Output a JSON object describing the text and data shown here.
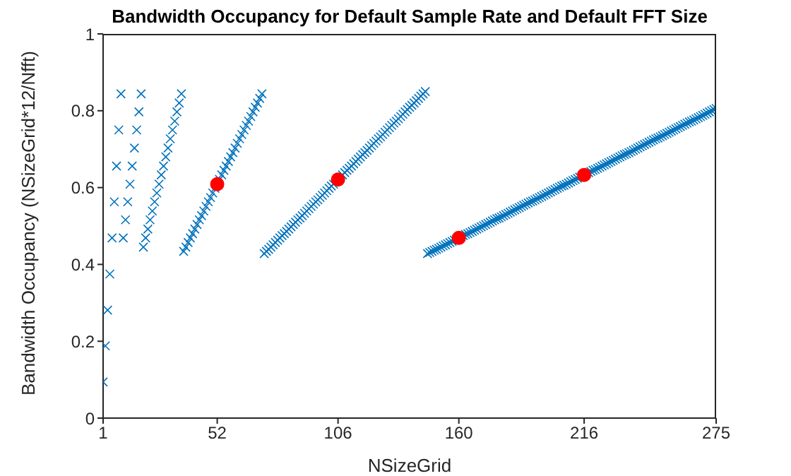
{
  "chart_data": {
    "type": "scatter",
    "title": "Bandwidth Occupancy for Default Sample Rate and Default FFT Size",
    "xlabel": "NSizeGrid",
    "ylabel": "Bandwidth Occupancy (NSizeGrid*12/Nfft)",
    "xlim": [
      1,
      275
    ],
    "xticks": [
      1,
      52,
      106,
      160,
      216,
      275
    ],
    "ylim": [
      0,
      1
    ],
    "yticks": [
      0,
      0.2,
      0.4,
      0.6,
      0.8,
      1
    ],
    "series": [
      {
        "color": "#0072bd",
        "marker": "cross",
        "x": [
          1,
          2,
          3,
          4,
          5,
          6,
          7,
          8,
          9,
          10,
          11,
          12,
          13,
          14,
          15,
          16,
          17,
          18,
          19,
          20,
          21,
          22,
          23,
          24,
          25,
          26,
          27,
          28,
          29,
          30,
          31,
          32,
          33,
          34,
          35,
          36,
          37,
          38,
          39,
          40,
          41,
          42,
          43,
          44,
          45,
          46,
          47,
          48,
          49,
          50,
          51,
          52,
          53,
          54,
          55,
          56,
          57,
          58,
          59,
          60,
          61,
          62,
          63,
          64,
          65,
          66,
          67,
          68,
          69,
          70,
          71,
          72,
          73,
          74,
          75,
          76,
          77,
          78,
          79,
          80,
          81,
          82,
          83,
          84,
          85,
          86,
          87,
          88,
          89,
          90,
          91,
          92,
          93,
          94,
          95,
          96,
          97,
          98,
          99,
          100,
          101,
          102,
          103,
          104,
          105,
          106,
          107,
          108,
          109,
          110,
          111,
          112,
          113,
          114,
          115,
          116,
          117,
          118,
          119,
          120,
          121,
          122,
          123,
          124,
          125,
          126,
          127,
          128,
          129,
          130,
          131,
          132,
          133,
          134,
          135,
          136,
          137,
          138,
          139,
          140,
          141,
          142,
          143,
          144,
          145,
          146,
          147,
          148,
          149,
          150,
          151,
          152,
          153,
          154,
          155,
          156,
          157,
          158,
          159,
          160,
          161,
          162,
          163,
          164,
          165,
          166,
          167,
          168,
          169,
          170,
          171,
          172,
          173,
          174,
          175,
          176,
          177,
          178,
          179,
          180,
          181,
          182,
          183,
          184,
          185,
          186,
          187,
          188,
          189,
          190,
          191,
          192,
          193,
          194,
          195,
          196,
          197,
          198,
          199,
          200,
          201,
          202,
          203,
          204,
          205,
          206,
          207,
          208,
          209,
          210,
          211,
          212,
          213,
          214,
          215,
          216,
          217,
          218,
          219,
          220,
          221,
          222,
          223,
          224,
          225,
          226,
          227,
          228,
          229,
          230,
          231,
          232,
          233,
          234,
          235,
          236,
          237,
          238,
          239,
          240,
          241,
          242,
          243,
          244,
          245,
          246,
          247,
          248,
          249,
          250,
          251,
          252,
          253,
          254,
          255,
          256,
          257,
          258,
          259,
          260,
          261,
          262,
          263,
          264,
          265,
          266,
          267,
          268,
          269,
          270,
          271,
          272,
          273,
          274,
          275
        ],
        "values": [
          0.094,
          0.188,
          0.281,
          0.375,
          0.469,
          0.563,
          0.656,
          0.75,
          0.844,
          0.469,
          0.516,
          0.563,
          0.609,
          0.656,
          0.703,
          0.75,
          0.797,
          0.844,
          0.445,
          0.469,
          0.492,
          0.516,
          0.539,
          0.563,
          0.586,
          0.609,
          0.633,
          0.656,
          0.68,
          0.703,
          0.727,
          0.75,
          0.773,
          0.797,
          0.82,
          0.844,
          0.434,
          0.445,
          0.457,
          0.469,
          0.48,
          0.492,
          0.504,
          0.516,
          0.527,
          0.539,
          0.551,
          0.563,
          0.574,
          0.586,
          0.598,
          null,
          0.621,
          0.633,
          0.645,
          0.656,
          0.668,
          0.68,
          0.691,
          0.703,
          0.715,
          0.727,
          0.738,
          0.75,
          0.762,
          0.773,
          0.785,
          0.797,
          0.809,
          0.82,
          0.832,
          0.844,
          0.428,
          0.434,
          0.439,
          0.445,
          0.451,
          0.457,
          0.463,
          0.469,
          0.475,
          0.48,
          0.486,
          0.492,
          0.498,
          0.504,
          0.51,
          0.516,
          0.521,
          0.527,
          0.533,
          0.539,
          0.545,
          0.551,
          0.557,
          0.563,
          0.568,
          0.574,
          0.58,
          0.586,
          0.592,
          0.598,
          0.604,
          0.609,
          0.615,
          null,
          0.627,
          0.633,
          0.639,
          0.645,
          0.65,
          0.656,
          0.662,
          0.668,
          0.674,
          0.68,
          0.686,
          0.691,
          0.697,
          0.703,
          0.709,
          0.715,
          0.721,
          0.727,
          0.732,
          0.738,
          0.744,
          0.75,
          0.756,
          0.762,
          0.768,
          0.773,
          0.779,
          0.785,
          0.791,
          0.797,
          0.803,
          0.809,
          0.814,
          0.82,
          0.826,
          0.832,
          0.838,
          0.844,
          0.85,
          0.428,
          0.431,
          0.434,
          0.437,
          0.439,
          0.442,
          0.445,
          0.448,
          0.451,
          0.454,
          0.457,
          0.46,
          0.463,
          0.466,
          null,
          0.472,
          0.475,
          0.478,
          0.48,
          0.483,
          0.486,
          0.489,
          0.492,
          0.495,
          0.498,
          0.501,
          0.504,
          0.507,
          0.51,
          0.513,
          0.516,
          0.519,
          0.521,
          0.524,
          0.527,
          0.53,
          0.533,
          0.536,
          0.539,
          0.542,
          0.545,
          0.548,
          0.551,
          0.554,
          0.557,
          0.56,
          0.563,
          0.565,
          0.568,
          0.571,
          0.574,
          0.577,
          0.58,
          0.583,
          0.586,
          0.589,
          0.592,
          0.595,
          0.598,
          0.601,
          0.604,
          0.606,
          0.609,
          0.612,
          0.615,
          0.618,
          0.621,
          0.624,
          0.627,
          0.63,
          null,
          0.636,
          0.639,
          0.642,
          0.645,
          0.647,
          0.65,
          0.653,
          0.656,
          0.659,
          0.662,
          0.665,
          0.668,
          0.671,
          0.674,
          0.677,
          0.68,
          0.683,
          0.686,
          0.688,
          0.691,
          0.694,
          0.697,
          0.7,
          0.703,
          0.706,
          0.709,
          0.712,
          0.715,
          0.718,
          0.721,
          0.724,
          0.727,
          0.729,
          0.732,
          0.735,
          0.738,
          0.741,
          0.744,
          0.747,
          0.75,
          0.753,
          0.756,
          0.759,
          0.762,
          0.765,
          0.768,
          0.771,
          0.773,
          0.776,
          0.779,
          0.782,
          0.785,
          0.788,
          0.791,
          0.794,
          0.797,
          0.8,
          0.803,
          0.806
        ]
      },
      {
        "color": "#ff0000",
        "marker": "circle",
        "x": [
          52,
          106,
          160,
          216
        ],
        "values": [
          0.609,
          0.621,
          0.469,
          0.633
        ]
      }
    ]
  }
}
